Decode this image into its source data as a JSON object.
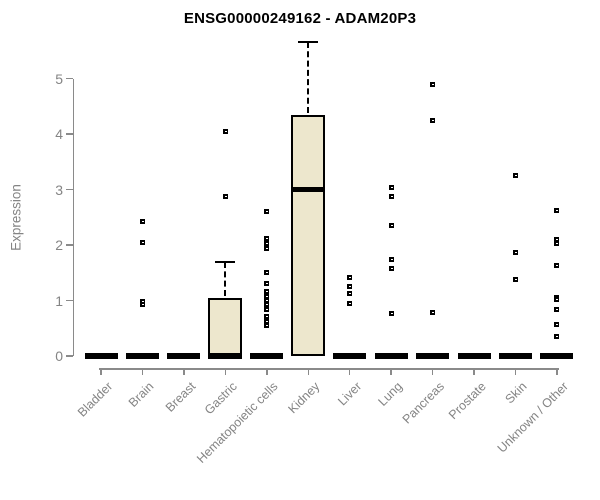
{
  "title": "ENSG00000249162 - ADAM20P3",
  "chart_data": {
    "type": "boxplot",
    "title": "ENSG00000249162 - ADAM20P3",
    "ylabel": "Expression",
    "xlabel": "",
    "ylim": [
      0,
      5
    ],
    "yticks": [
      0,
      1,
      2,
      3,
      4,
      5
    ],
    "grid": false,
    "legend": "none",
    "categories": [
      "Bladder",
      "Brain",
      "Breast",
      "Gastric",
      "Hematopoietic cells",
      "Kidney",
      "Liver",
      "Lung",
      "Pancreas",
      "Prostate",
      "Skin",
      "Unknown / Other"
    ],
    "boxes": [
      {
        "category": "Bladder",
        "q1": 0,
        "median": 0,
        "q3": 0,
        "whisker_low": 0,
        "whisker_high": 0,
        "outliers": []
      },
      {
        "category": "Brain",
        "q1": 0,
        "median": 0,
        "q3": 0,
        "whisker_low": 0,
        "whisker_high": 0,
        "outliers": [
          2.42,
          2.05,
          0.98,
          0.93
        ]
      },
      {
        "category": "Breast",
        "q1": 0,
        "median": 0,
        "q3": 0,
        "whisker_low": 0,
        "whisker_high": 0,
        "outliers": []
      },
      {
        "category": "Gastric",
        "q1": 0,
        "median": 0,
        "q3": 1.05,
        "whisker_low": 0,
        "whisker_high": 1.7,
        "outliers": [
          4.05,
          2.88
        ]
      },
      {
        "category": "Hematopoietic cells",
        "q1": 0,
        "median": 0,
        "q3": 0,
        "whisker_low": 0,
        "whisker_high": 0,
        "outliers": [
          2.61,
          2.12,
          2.02,
          1.93,
          1.5,
          1.3,
          1.17,
          1.08,
          1.0,
          0.92,
          0.83,
          0.72,
          0.63,
          0.55
        ]
      },
      {
        "category": "Kidney",
        "q1": 0,
        "median": 3.0,
        "q3": 4.35,
        "whisker_low": 0,
        "whisker_high": 5.65,
        "outliers": []
      },
      {
        "category": "Liver",
        "q1": 0,
        "median": 0,
        "q3": 0,
        "whisker_low": 0,
        "whisker_high": 0,
        "outliers": [
          1.42,
          1.25,
          1.12,
          0.95
        ]
      },
      {
        "category": "Lung",
        "q1": 0,
        "median": 0,
        "q3": 0,
        "whisker_low": 0,
        "whisker_high": 0,
        "outliers": [
          3.03,
          2.87,
          2.36,
          1.73,
          1.57,
          0.77
        ]
      },
      {
        "category": "Pancreas",
        "q1": 0,
        "median": 0,
        "q3": 0,
        "whisker_low": 0,
        "whisker_high": 0,
        "outliers": [
          4.9,
          4.25,
          0.79
        ]
      },
      {
        "category": "Prostate",
        "q1": 0,
        "median": 0,
        "q3": 0,
        "whisker_low": 0,
        "whisker_high": 0,
        "outliers": []
      },
      {
        "category": "Skin",
        "q1": 0,
        "median": 0,
        "q3": 0,
        "whisker_low": 0,
        "whisker_high": 0,
        "outliers": [
          3.26,
          1.86,
          1.37
        ]
      },
      {
        "category": "Unknown / Other",
        "q1": 0,
        "median": 0,
        "q3": 0,
        "whisker_low": 0,
        "whisker_high": 0,
        "outliers": [
          2.62,
          2.1,
          2.02,
          1.63,
          1.06,
          1.01,
          0.83,
          0.57,
          0.35
        ]
      }
    ],
    "colors": {
      "box_fill": "#EDE7CD",
      "box_border": "#000000",
      "median": "#000000",
      "outlier": "#000000",
      "axis": "#8a8a8a",
      "tick_text": "#848484",
      "title_text": "#000000",
      "background": "#ffffff"
    }
  }
}
